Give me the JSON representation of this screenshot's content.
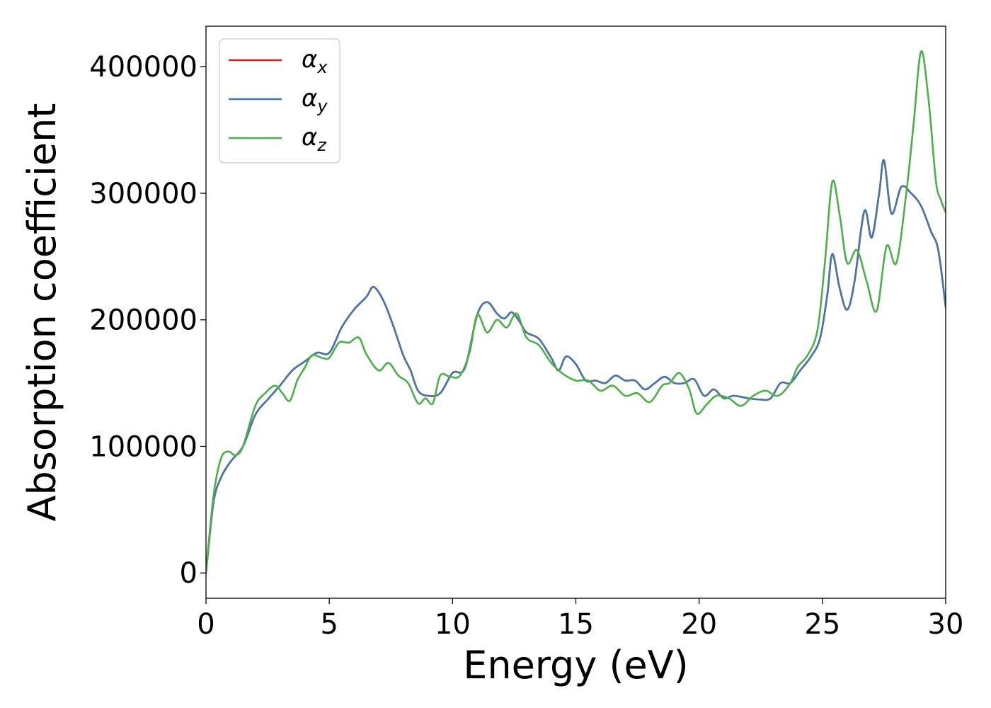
{
  "chart_data": {
    "type": "line",
    "title": "",
    "xlabel": "Energy (eV)",
    "ylabel": "Absorption coefficient",
    "xlim": [
      0,
      30
    ],
    "ylim": [
      -20000,
      432000
    ],
    "xticks": [
      0,
      5,
      10,
      15,
      20,
      25,
      30
    ],
    "yticks": [
      0,
      100000,
      200000,
      300000,
      400000
    ],
    "xtick_labels": [
      "0",
      "5",
      "10",
      "15",
      "20",
      "25",
      "30"
    ],
    "ytick_labels": [
      "0",
      "100000",
      "200000",
      "300000",
      "400000"
    ],
    "grid": false,
    "legend_position": "top-left",
    "series": [
      {
        "name": "α_x",
        "legend_base": "α",
        "legend_sub": "x",
        "color": "#e41a1c",
        "x": [
          0,
          0.3,
          0.6,
          1.0,
          1.5,
          2.0,
          2.5,
          3.0,
          3.5,
          4.0,
          4.5,
          5.0,
          5.5,
          6.0,
          6.5,
          6.8,
          7.2,
          7.6,
          8.0,
          8.3,
          8.6,
          9.0,
          9.5,
          10.0,
          10.5,
          11.0,
          11.4,
          11.8,
          12.1,
          12.4,
          12.7,
          13.0,
          13.5,
          14.0,
          14.3,
          14.6,
          15.0,
          15.4,
          15.8,
          16.2,
          16.6,
          17.0,
          17.4,
          17.8,
          18.2,
          18.6,
          19.0,
          19.4,
          19.8,
          20.2,
          20.6,
          21.0,
          21.4,
          22.0,
          22.5,
          22.9,
          23.3,
          23.7,
          24.1,
          24.5,
          24.9,
          25.2,
          25.4,
          25.7,
          26.0,
          26.3,
          26.7,
          27.0,
          27.3,
          27.5,
          27.8,
          28.2,
          28.6,
          29.0,
          29.4,
          29.7,
          30.0
        ],
        "values": [
          0,
          55000,
          75000,
          88000,
          100000,
          125000,
          137000,
          148000,
          160000,
          167000,
          174000,
          174000,
          194000,
          208000,
          218000,
          226000,
          215000,
          195000,
          172000,
          160000,
          144000,
          140000,
          142000,
          158000,
          162000,
          204000,
          214000,
          205000,
          201000,
          206000,
          199000,
          190000,
          185000,
          170000,
          160000,
          171000,
          165000,
          152000,
          152000,
          150000,
          156000,
          152000,
          152000,
          145000,
          150000,
          155000,
          150000,
          150000,
          153000,
          140000,
          145000,
          138000,
          140000,
          138000,
          137000,
          138000,
          150000,
          150000,
          160000,
          170000,
          185000,
          220000,
          252000,
          225000,
          208000,
          230000,
          286000,
          265000,
          300000,
          326000,
          284000,
          305000,
          300000,
          290000,
          270000,
          255000,
          210000
        ]
      },
      {
        "name": "α_y",
        "legend_base": "α",
        "legend_sub": "y",
        "color": "#4477aa",
        "x": [
          0,
          0.3,
          0.6,
          1.0,
          1.5,
          2.0,
          2.5,
          3.0,
          3.5,
          4.0,
          4.5,
          5.0,
          5.5,
          6.0,
          6.5,
          6.8,
          7.2,
          7.6,
          8.0,
          8.3,
          8.6,
          9.0,
          9.5,
          10.0,
          10.5,
          11.0,
          11.4,
          11.8,
          12.1,
          12.4,
          12.7,
          13.0,
          13.5,
          14.0,
          14.3,
          14.6,
          15.0,
          15.4,
          15.8,
          16.2,
          16.6,
          17.0,
          17.4,
          17.8,
          18.2,
          18.6,
          19.0,
          19.4,
          19.8,
          20.2,
          20.6,
          21.0,
          21.4,
          22.0,
          22.5,
          22.9,
          23.3,
          23.7,
          24.1,
          24.5,
          24.9,
          25.2,
          25.4,
          25.7,
          26.0,
          26.3,
          26.7,
          27.0,
          27.3,
          27.5,
          27.8,
          28.2,
          28.6,
          29.0,
          29.4,
          29.7,
          30.0
        ],
        "values": [
          0,
          55000,
          75000,
          88000,
          100000,
          125000,
          137000,
          148000,
          160000,
          167000,
          174000,
          174000,
          194000,
          208000,
          218000,
          226000,
          215000,
          195000,
          172000,
          160000,
          144000,
          140000,
          142000,
          158000,
          162000,
          204000,
          214000,
          205000,
          201000,
          206000,
          199000,
          190000,
          185000,
          170000,
          160000,
          171000,
          165000,
          152000,
          152000,
          150000,
          156000,
          152000,
          152000,
          145000,
          150000,
          155000,
          150000,
          150000,
          153000,
          140000,
          145000,
          138000,
          140000,
          138000,
          137000,
          138000,
          150000,
          150000,
          160000,
          170000,
          185000,
          220000,
          252000,
          225000,
          208000,
          230000,
          286000,
          265000,
          300000,
          326000,
          284000,
          305000,
          300000,
          290000,
          270000,
          255000,
          210000
        ]
      },
      {
        "name": "α_z",
        "legend_base": "α",
        "legend_sub": "z",
        "color": "#4daf4a",
        "x": [
          0,
          0.3,
          0.6,
          0.9,
          1.2,
          1.5,
          2.0,
          2.4,
          2.8,
          3.1,
          3.4,
          3.7,
          4.0,
          4.3,
          4.7,
          5.0,
          5.4,
          5.8,
          6.2,
          6.5,
          7.0,
          7.4,
          7.8,
          8.2,
          8.6,
          8.9,
          9.2,
          9.5,
          9.9,
          10.3,
          10.7,
          11.0,
          11.4,
          11.8,
          12.2,
          12.6,
          13.0,
          13.5,
          14.0,
          14.5,
          15.0,
          15.5,
          16.0,
          16.5,
          17.0,
          17.5,
          18.0,
          18.5,
          18.8,
          19.2,
          19.6,
          19.9,
          20.3,
          20.7,
          21.2,
          21.7,
          22.2,
          22.7,
          23.2,
          23.7,
          24.0,
          24.4,
          24.8,
          25.1,
          25.4,
          25.7,
          26.0,
          26.4,
          26.8,
          27.2,
          27.6,
          28.0,
          28.4,
          28.7,
          29.0,
          29.3,
          29.6,
          29.8,
          30.0
        ],
        "values": [
          0,
          60000,
          90000,
          96000,
          93000,
          100000,
          132000,
          142000,
          148000,
          142000,
          136000,
          152000,
          162000,
          172000,
          170000,
          170000,
          182000,
          182000,
          186000,
          173000,
          160000,
          166000,
          156000,
          150000,
          134000,
          138000,
          134000,
          156000,
          155000,
          156000,
          175000,
          204000,
          190000,
          200000,
          194000,
          205000,
          186000,
          180000,
          166000,
          157000,
          152000,
          152000,
          144000,
          148000,
          140000,
          142000,
          135000,
          148000,
          150000,
          158000,
          145000,
          126000,
          133000,
          140000,
          138000,
          132000,
          140000,
          144000,
          140000,
          150000,
          163000,
          172000,
          192000,
          245000,
          309000,
          283000,
          245000,
          255000,
          230000,
          207000,
          258000,
          245000,
          300000,
          355000,
          412000,
          375000,
          310000,
          295000,
          285000
        ]
      }
    ]
  }
}
